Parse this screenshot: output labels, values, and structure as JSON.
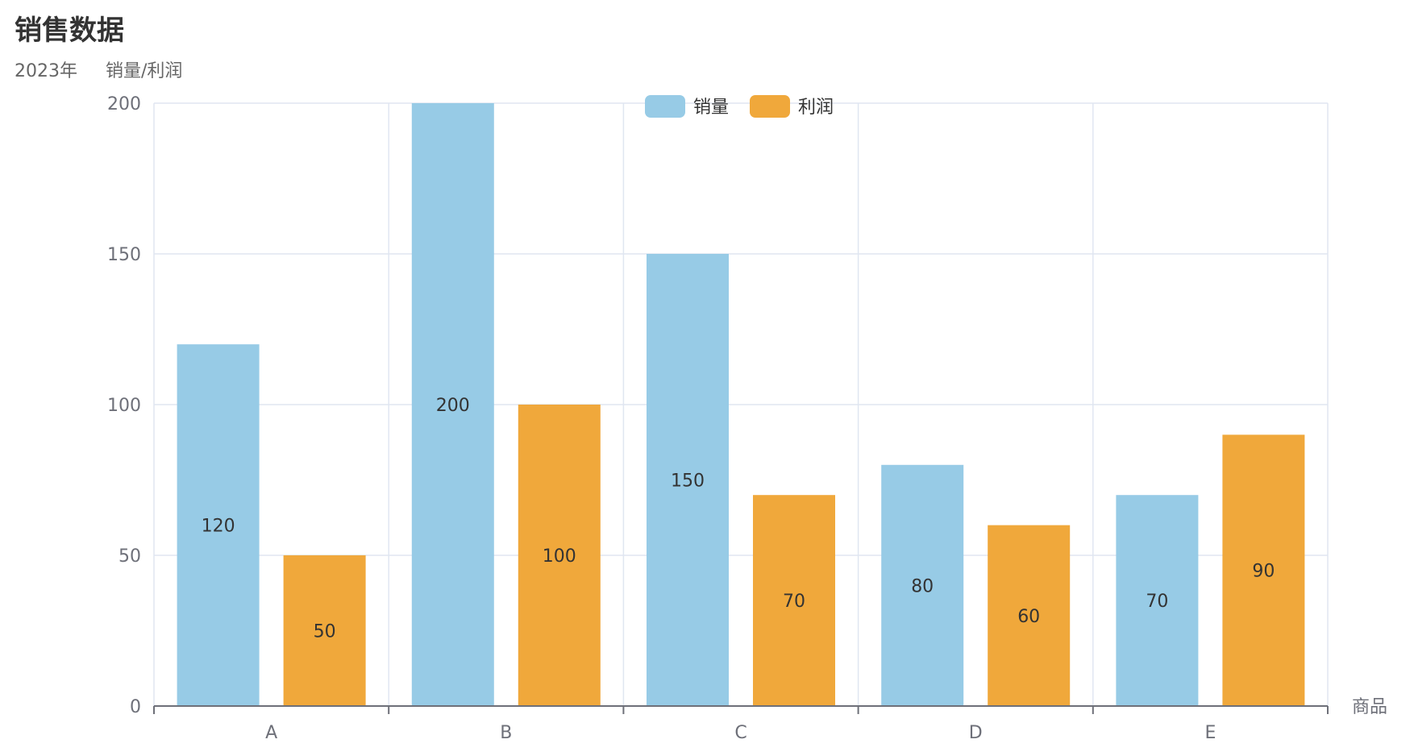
{
  "chart_data": {
    "type": "bar",
    "title": "销售数据",
    "subtitle": "2023年     销量/利润",
    "xlabel": "商品",
    "ylabel": "",
    "categories": [
      "A",
      "B",
      "C",
      "D",
      "E"
    ],
    "series": [
      {
        "name": "销量",
        "values": [
          120,
          200,
          150,
          80,
          70
        ],
        "color": "#97cbe6"
      },
      {
        "name": "利润",
        "values": [
          50,
          100,
          70,
          60,
          90
        ],
        "color": "#f0a83b"
      }
    ],
    "ylim": [
      0,
      200
    ],
    "yticks": [
      0,
      50,
      100,
      150,
      200
    ],
    "grid": true,
    "legend_position": "top-center",
    "data_labels_position": "inside-middle"
  }
}
